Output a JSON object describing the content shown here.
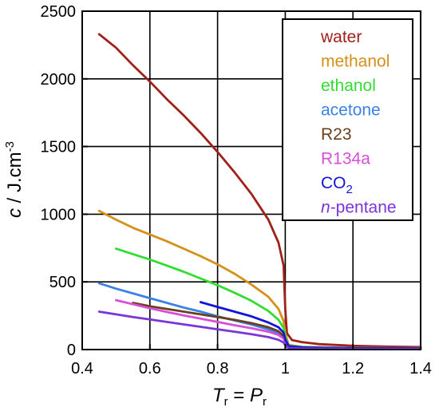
{
  "chart_data": {
    "type": "line",
    "xlabel": {
      "main": "T",
      "main_sub": "r",
      "eq": " = ",
      "second": "P",
      "second_sub": "r"
    },
    "ylabel": {
      "italic": "c",
      "rest": " / J.cm",
      "sup": "-3"
    },
    "xlim": [
      0.4,
      1.4
    ],
    "ylim": [
      0,
      2500
    ],
    "x_ticks": [
      "0.4",
      "0.6",
      "0.8",
      "1",
      "1.2",
      "1.4"
    ],
    "y_ticks": [
      "0",
      "500",
      "1000",
      "1500",
      "2000",
      "2500"
    ],
    "grid": true,
    "legend_position": "top-right",
    "series": [
      {
        "name": "water",
        "label_parts": [
          {
            "t": "water"
          }
        ],
        "color": "#a0201a",
        "points": [
          [
            0.45,
            2330
          ],
          [
            0.5,
            2230
          ],
          [
            0.55,
            2100
          ],
          [
            0.6,
            1980
          ],
          [
            0.65,
            1850
          ],
          [
            0.7,
            1730
          ],
          [
            0.75,
            1600
          ],
          [
            0.8,
            1460
          ],
          [
            0.85,
            1310
          ],
          [
            0.9,
            1150
          ],
          [
            0.95,
            960
          ],
          [
            0.98,
            790
          ],
          [
            0.995,
            620
          ],
          [
            1.0,
            300
          ],
          [
            1.005,
            120
          ],
          [
            1.02,
            70
          ],
          [
            1.05,
            55
          ],
          [
            1.1,
            40
          ],
          [
            1.2,
            28
          ],
          [
            1.3,
            22
          ],
          [
            1.4,
            18
          ]
        ]
      },
      {
        "name": "methanol",
        "label_parts": [
          {
            "t": "methanol"
          }
        ],
        "color": "#d4901a",
        "points": [
          [
            0.45,
            1025
          ],
          [
            0.5,
            960
          ],
          [
            0.55,
            900
          ],
          [
            0.6,
            850
          ],
          [
            0.65,
            800
          ],
          [
            0.7,
            745
          ],
          [
            0.75,
            690
          ],
          [
            0.8,
            630
          ],
          [
            0.85,
            560
          ],
          [
            0.9,
            480
          ],
          [
            0.95,
            390
          ],
          [
            0.98,
            300
          ],
          [
            0.995,
            210
          ],
          [
            1.0,
            120
          ],
          [
            1.01,
            35
          ],
          [
            1.05,
            20
          ],
          [
            1.2,
            12
          ],
          [
            1.4,
            10
          ]
        ]
      },
      {
        "name": "ethanol",
        "label_parts": [
          {
            "t": "ethanol"
          }
        ],
        "color": "#30dd30",
        "points": [
          [
            0.5,
            745
          ],
          [
            0.55,
            705
          ],
          [
            0.6,
            665
          ],
          [
            0.65,
            620
          ],
          [
            0.7,
            575
          ],
          [
            0.75,
            525
          ],
          [
            0.8,
            475
          ],
          [
            0.85,
            420
          ],
          [
            0.9,
            360
          ],
          [
            0.95,
            285
          ],
          [
            0.98,
            220
          ],
          [
            0.995,
            160
          ],
          [
            1.0,
            95
          ],
          [
            1.01,
            28
          ],
          [
            1.05,
            18
          ],
          [
            1.2,
            11
          ],
          [
            1.4,
            9
          ]
        ]
      },
      {
        "name": "acetone",
        "label_parts": [
          {
            "t": "acetone"
          }
        ],
        "color": "#3a82e6",
        "points": [
          [
            0.45,
            490
          ],
          [
            0.5,
            450
          ],
          [
            0.55,
            415
          ],
          [
            0.6,
            380
          ],
          [
            0.65,
            345
          ],
          [
            0.7,
            310
          ],
          [
            0.75,
            280
          ],
          [
            0.8,
            245
          ],
          [
            0.85,
            215
          ],
          [
            0.9,
            185
          ],
          [
            0.95,
            150
          ],
          [
            0.98,
            120
          ],
          [
            0.995,
            90
          ],
          [
            1.0,
            55
          ],
          [
            1.01,
            20
          ],
          [
            1.05,
            12
          ],
          [
            1.2,
            8
          ],
          [
            1.4,
            6
          ]
        ]
      },
      {
        "name": "R23",
        "label_parts": [
          {
            "t": "R23"
          }
        ],
        "color": "#6a4020",
        "points": [
          [
            0.55,
            345
          ],
          [
            0.6,
            320
          ],
          [
            0.65,
            300
          ],
          [
            0.7,
            280
          ],
          [
            0.75,
            260
          ],
          [
            0.8,
            240
          ],
          [
            0.85,
            220
          ],
          [
            0.9,
            195
          ],
          [
            0.95,
            165
          ],
          [
            0.98,
            135
          ],
          [
            0.995,
            100
          ],
          [
            1.0,
            60
          ],
          [
            1.01,
            22
          ],
          [
            1.05,
            14
          ],
          [
            1.2,
            9
          ],
          [
            1.4,
            7
          ]
        ]
      },
      {
        "name": "R134a",
        "label_parts": [
          {
            "t": "R134a"
          }
        ],
        "color": "#d84ed8",
        "points": [
          [
            0.5,
            365
          ],
          [
            0.55,
            335
          ],
          [
            0.6,
            305
          ],
          [
            0.65,
            278
          ],
          [
            0.7,
            252
          ],
          [
            0.75,
            228
          ],
          [
            0.8,
            204
          ],
          [
            0.85,
            180
          ],
          [
            0.9,
            158
          ],
          [
            0.95,
            132
          ],
          [
            0.98,
            108
          ],
          [
            0.995,
            80
          ],
          [
            1.0,
            48
          ],
          [
            1.01,
            18
          ],
          [
            1.05,
            12
          ],
          [
            1.2,
            8
          ],
          [
            1.4,
            6
          ]
        ]
      },
      {
        "name": "CO2",
        "label_parts": [
          {
            "t": "CO"
          },
          {
            "t": "2",
            "sub": true
          }
        ],
        "color": "#1414d8",
        "points": [
          [
            0.75,
            350
          ],
          [
            0.8,
            315
          ],
          [
            0.85,
            280
          ],
          [
            0.9,
            245
          ],
          [
            0.95,
            200
          ],
          [
            0.98,
            165
          ],
          [
            0.995,
            125
          ],
          [
            1.0,
            75
          ],
          [
            1.01,
            25
          ],
          [
            1.05,
            16
          ],
          [
            1.2,
            10
          ],
          [
            1.4,
            8
          ]
        ]
      },
      {
        "name": "n-pentane",
        "label_parts": [
          {
            "t": "n",
            "italic": true
          },
          {
            "t": "-pentane"
          }
        ],
        "color": "#7a35d8",
        "points": [
          [
            0.45,
            280
          ],
          [
            0.5,
            260
          ],
          [
            0.55,
            240
          ],
          [
            0.6,
            222
          ],
          [
            0.65,
            204
          ],
          [
            0.7,
            186
          ],
          [
            0.75,
            168
          ],
          [
            0.8,
            150
          ],
          [
            0.85,
            132
          ],
          [
            0.9,
            113
          ],
          [
            0.95,
            92
          ],
          [
            0.98,
            72
          ],
          [
            0.995,
            52
          ],
          [
            1.0,
            32
          ],
          [
            1.01,
            12
          ],
          [
            1.05,
            8
          ],
          [
            1.2,
            5
          ],
          [
            1.4,
            4
          ]
        ]
      }
    ]
  }
}
